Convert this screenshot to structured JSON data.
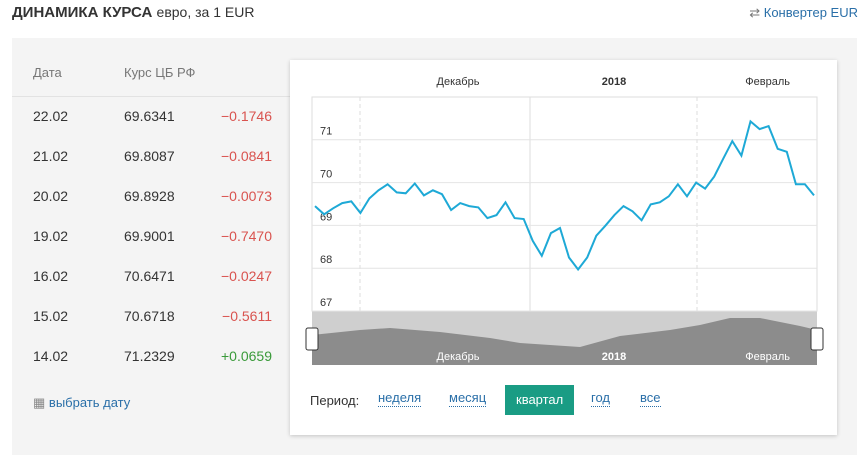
{
  "header": {
    "title": "ДИНАМИКА КУРСА",
    "subtitle": "евро, за 1 EUR",
    "converter": "Конвертер EUR"
  },
  "table": {
    "columns": [
      "Дата",
      "Курс ЦБ РФ"
    ],
    "rows": [
      [
        "22.02",
        "69.6341",
        "−0.1746"
      ],
      [
        "21.02",
        "69.8087",
        "−0.0841"
      ],
      [
        "20.02",
        "69.8928",
        "−0.0073"
      ],
      [
        "19.02",
        "69.9001",
        "−0.7470"
      ],
      [
        "16.02",
        "70.6471",
        "−0.0247"
      ],
      [
        "15.02",
        "70.6718",
        "−0.5611"
      ],
      [
        "14.02",
        "71.2329",
        "+0.0659"
      ]
    ]
  },
  "pick_date": "выбрать дату",
  "chart_data": {
    "type": "line",
    "top_labels": [
      "Декабрь",
      "2018",
      "Февраль"
    ],
    "navigator_labels": [
      "Декабрь",
      "2018",
      "Февраль"
    ],
    "series": [
      {
        "color": "#1ea9d6",
        "values": [
          69.45,
          69.26,
          69.4,
          69.52,
          69.56,
          69.29,
          69.63,
          69.82,
          69.96,
          69.77,
          69.75,
          69.98,
          69.7,
          69.82,
          69.73,
          69.36,
          69.52,
          69.45,
          69.42,
          69.17,
          69.24,
          69.54,
          69.17,
          69.15,
          68.64,
          68.29,
          68.82,
          68.94,
          68.25,
          67.97,
          68.25,
          68.76,
          68.99,
          69.24,
          69.45,
          69.33,
          69.12,
          69.49,
          69.54,
          69.68,
          69.96,
          69.68,
          70.0,
          69.86,
          70.14,
          70.56,
          70.97,
          70.63,
          71.43,
          71.25,
          71.32,
          70.79,
          70.72,
          69.96,
          69.96,
          69.7
        ]
      }
    ],
    "ylim": [
      67,
      72
    ],
    "yticks": [
      67,
      68,
      69,
      70,
      71
    ],
    "grid": true
  },
  "period": {
    "label": "Период:",
    "options": [
      "неделя",
      "месяц",
      "квартал",
      "год",
      "все"
    ],
    "active": 2
  }
}
